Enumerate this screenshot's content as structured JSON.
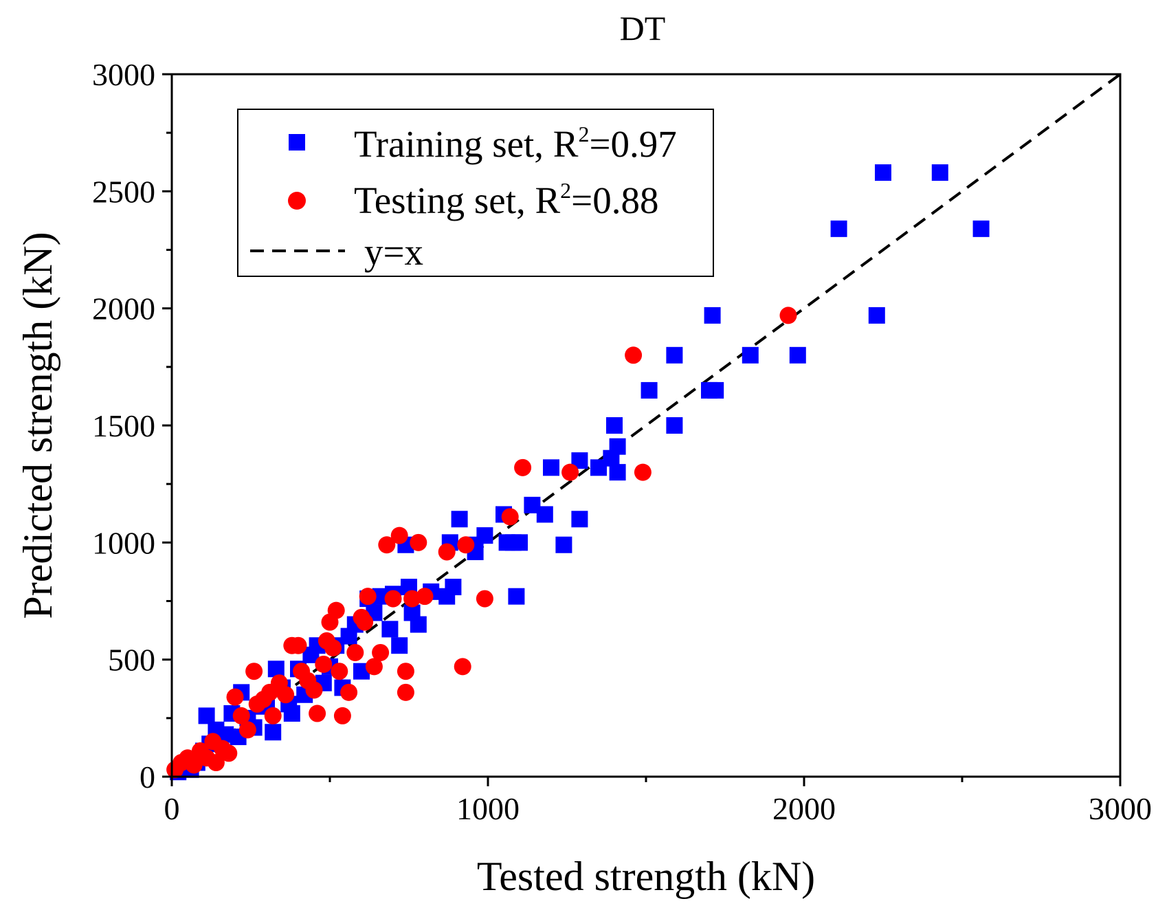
{
  "chart_data": {
    "type": "scatter",
    "title": "DT",
    "xlabel": "Tested strength (kN)",
    "ylabel": "Predicted strength (kN)",
    "xlim": [
      0,
      3000
    ],
    "ylim": [
      0,
      3000
    ],
    "xticks": [
      0,
      1000,
      2000,
      3000
    ],
    "yticks": [
      0,
      500,
      1000,
      1500,
      2000,
      2500,
      3000
    ],
    "xtick_labels": [
      "0",
      "1000",
      "2000",
      "3000"
    ],
    "ytick_labels": [
      "0",
      "500",
      "1000",
      "1500",
      "2000",
      "2500",
      "3000"
    ],
    "minor_step": 500,
    "grid": false,
    "legend_position": "top-left",
    "legend": [
      {
        "name": "Training set",
        "label": "Training set, R",
        "sup": "2",
        "suffix": "=0.97",
        "marker": "square",
        "color": "#0000ff"
      },
      {
        "name": "Testing set",
        "label": "Testing set, R",
        "sup": "2",
        "suffix": "=0.88",
        "marker": "circle",
        "color": "#ff0000"
      },
      {
        "name": "y=x",
        "label": "y=x",
        "marker": "dashed-line",
        "color": "#000000"
      }
    ],
    "series": [
      {
        "name": "Training set",
        "marker": "square",
        "color": "#0000ff",
        "points": [
          [
            20,
            20
          ],
          [
            40,
            40
          ],
          [
            60,
            30
          ],
          [
            80,
            60
          ],
          [
            100,
            110
          ],
          [
            110,
            260
          ],
          [
            120,
            140
          ],
          [
            140,
            200
          ],
          [
            150,
            150
          ],
          [
            170,
            180
          ],
          [
            190,
            270
          ],
          [
            210,
            170
          ],
          [
            220,
            360
          ],
          [
            240,
            250
          ],
          [
            260,
            210
          ],
          [
            280,
            300
          ],
          [
            300,
            320
          ],
          [
            320,
            190
          ],
          [
            330,
            460
          ],
          [
            350,
            380
          ],
          [
            370,
            310
          ],
          [
            380,
            270
          ],
          [
            400,
            460
          ],
          [
            420,
            350
          ],
          [
            440,
            520
          ],
          [
            460,
            560
          ],
          [
            480,
            400
          ],
          [
            500,
            470
          ],
          [
            520,
            560
          ],
          [
            540,
            380
          ],
          [
            560,
            600
          ],
          [
            580,
            650
          ],
          [
            600,
            450
          ],
          [
            620,
            760
          ],
          [
            640,
            700
          ],
          [
            660,
            770
          ],
          [
            690,
            630
          ],
          [
            700,
            780
          ],
          [
            720,
            560
          ],
          [
            740,
            990
          ],
          [
            750,
            810
          ],
          [
            760,
            700
          ],
          [
            780,
            650
          ],
          [
            820,
            790
          ],
          [
            870,
            770
          ],
          [
            880,
            1000
          ],
          [
            890,
            810
          ],
          [
            910,
            1100
          ],
          [
            950,
            990
          ],
          [
            960,
            960
          ],
          [
            990,
            1030
          ],
          [
            1050,
            1120
          ],
          [
            1060,
            1000
          ],
          [
            1080,
            1000
          ],
          [
            1090,
            770
          ],
          [
            1100,
            1000
          ],
          [
            1140,
            1160
          ],
          [
            1180,
            1120
          ],
          [
            1200,
            1320
          ],
          [
            1240,
            990
          ],
          [
            1290,
            1100
          ],
          [
            1290,
            1350
          ],
          [
            1350,
            1320
          ],
          [
            1390,
            1360
          ],
          [
            1400,
            1500
          ],
          [
            1410,
            1410
          ],
          [
            1410,
            1300
          ],
          [
            1510,
            1650
          ],
          [
            1590,
            1800
          ],
          [
            1590,
            1500
          ],
          [
            1700,
            1650
          ],
          [
            1710,
            1970
          ],
          [
            1720,
            1650
          ],
          [
            1830,
            1800
          ],
          [
            1980,
            1800
          ],
          [
            2110,
            2340
          ],
          [
            2230,
            1970
          ],
          [
            2250,
            2580
          ],
          [
            2430,
            2580
          ],
          [
            2560,
            2340
          ]
        ]
      },
      {
        "name": "Testing set",
        "marker": "circle",
        "color": "#ff0000",
        "points": [
          [
            10,
            30
          ],
          [
            30,
            60
          ],
          [
            50,
            80
          ],
          [
            70,
            50
          ],
          [
            90,
            110
          ],
          [
            110,
            80
          ],
          [
            130,
            150
          ],
          [
            140,
            60
          ],
          [
            160,
            120
          ],
          [
            180,
            100
          ],
          [
            200,
            340
          ],
          [
            220,
            260
          ],
          [
            240,
            200
          ],
          [
            260,
            450
          ],
          [
            270,
            310
          ],
          [
            290,
            330
          ],
          [
            310,
            360
          ],
          [
            320,
            260
          ],
          [
            340,
            400
          ],
          [
            360,
            350
          ],
          [
            380,
            560
          ],
          [
            400,
            560
          ],
          [
            410,
            450
          ],
          [
            430,
            410
          ],
          [
            450,
            370
          ],
          [
            460,
            270
          ],
          [
            480,
            480
          ],
          [
            490,
            580
          ],
          [
            500,
            660
          ],
          [
            510,
            550
          ],
          [
            520,
            710
          ],
          [
            530,
            450
          ],
          [
            540,
            260
          ],
          [
            560,
            360
          ],
          [
            580,
            530
          ],
          [
            600,
            680
          ],
          [
            610,
            660
          ],
          [
            620,
            770
          ],
          [
            640,
            470
          ],
          [
            660,
            530
          ],
          [
            680,
            990
          ],
          [
            700,
            760
          ],
          [
            720,
            1030
          ],
          [
            740,
            450
          ],
          [
            740,
            360
          ],
          [
            760,
            760
          ],
          [
            780,
            1000
          ],
          [
            800,
            770
          ],
          [
            870,
            960
          ],
          [
            920,
            470
          ],
          [
            930,
            990
          ],
          [
            990,
            760
          ],
          [
            1070,
            1110
          ],
          [
            1110,
            1320
          ],
          [
            1260,
            1300
          ],
          [
            1460,
            1800
          ],
          [
            1490,
            1300
          ],
          [
            1950,
            1970
          ]
        ]
      },
      {
        "name": "y=x",
        "type": "line",
        "style": "dashed",
        "color": "#000000",
        "x": [
          0,
          3000
        ],
        "y": [
          0,
          3000
        ]
      }
    ]
  }
}
